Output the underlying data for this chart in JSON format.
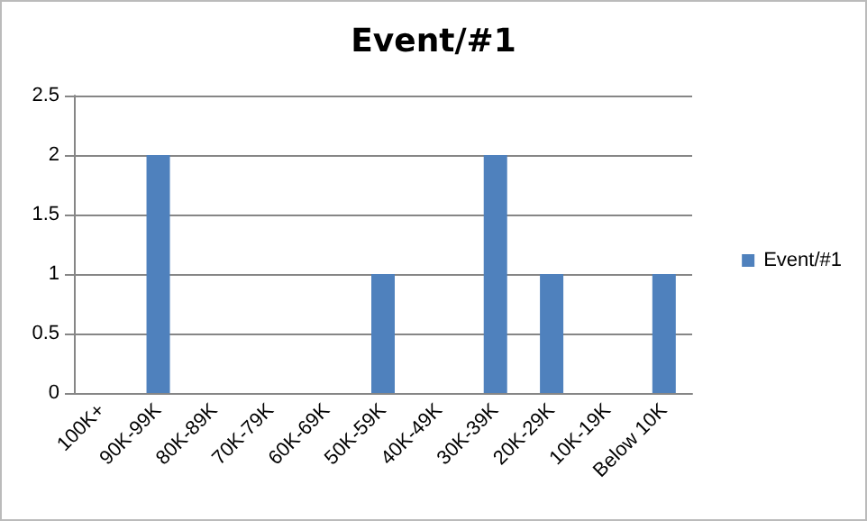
{
  "chart_data": {
    "type": "bar",
    "title": "Event/#1",
    "categories": [
      "100K+",
      "90K-99K",
      "80K-89K",
      "70K-79K",
      "60K-69K",
      "50K-59K",
      "40K-49K",
      "30K-39K",
      "20K-29K",
      "10K-19K",
      "Below 10K"
    ],
    "series": [
      {
        "name": "Event/#1",
        "color": "#4f81bd",
        "values": [
          0,
          2,
          0,
          0,
          0,
          1,
          0,
          2,
          1,
          0,
          1
        ]
      }
    ],
    "ylim": [
      0,
      2.5
    ],
    "yticks": [
      0,
      0.5,
      1,
      1.5,
      2,
      2.5
    ],
    "grid": "y",
    "legend": "right"
  }
}
